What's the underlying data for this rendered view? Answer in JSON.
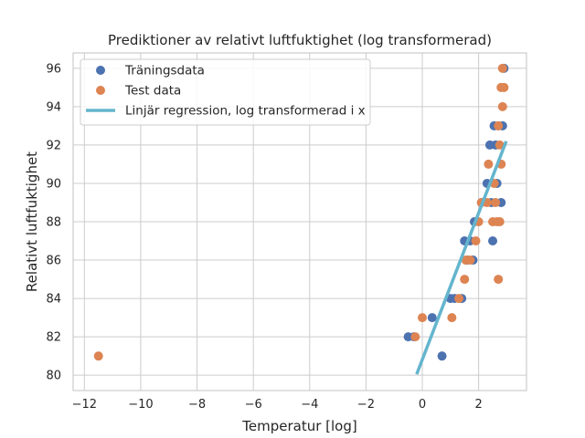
{
  "chart_data": {
    "type": "scatter",
    "title": "Prediktioner av relativt luftfuktighet (log transformerad)",
    "xlabel": "Temperatur [log]",
    "ylabel": "Relativt luftfuktighet",
    "xlim": [
      -12.4,
      3.7
    ],
    "ylim": [
      79.2,
      96.8
    ],
    "xticks": [
      -12,
      -10,
      -8,
      -6,
      -4,
      -2,
      0,
      2
    ],
    "yticks": [
      80,
      82,
      84,
      86,
      88,
      90,
      92,
      94,
      96
    ],
    "grid": true,
    "legend_position": "top-left",
    "series": [
      {
        "name": "Träningsdata",
        "kind": "scatter",
        "color": "#4c72b0",
        "points": [
          [
            -0.5,
            82
          ],
          [
            -0.3,
            82
          ],
          [
            0.35,
            83
          ],
          [
            0.7,
            81
          ],
          [
            1.0,
            84
          ],
          [
            1.15,
            84
          ],
          [
            1.4,
            84
          ],
          [
            1.5,
            87
          ],
          [
            1.6,
            86
          ],
          [
            1.7,
            87
          ],
          [
            1.8,
            86
          ],
          [
            1.85,
            88
          ],
          [
            2.1,
            89
          ],
          [
            2.3,
            90
          ],
          [
            2.4,
            92
          ],
          [
            2.45,
            89
          ],
          [
            2.5,
            87
          ],
          [
            2.55,
            93
          ],
          [
            2.6,
            92
          ],
          [
            2.65,
            90
          ],
          [
            2.7,
            93
          ],
          [
            2.8,
            89
          ],
          [
            2.85,
            93
          ],
          [
            2.9,
            96
          ]
        ]
      },
      {
        "name": "Test data",
        "kind": "scatter",
        "color": "#dd8452",
        "points": [
          [
            -11.5,
            81
          ],
          [
            -0.25,
            82
          ],
          [
            0.0,
            83
          ],
          [
            1.05,
            83
          ],
          [
            1.3,
            84
          ],
          [
            1.5,
            85
          ],
          [
            1.55,
            86
          ],
          [
            1.7,
            86
          ],
          [
            1.9,
            87
          ],
          [
            2.0,
            88
          ],
          [
            2.1,
            89
          ],
          [
            2.3,
            89
          ],
          [
            2.35,
            91
          ],
          [
            2.5,
            88
          ],
          [
            2.55,
            90
          ],
          [
            2.6,
            89
          ],
          [
            2.65,
            88
          ],
          [
            2.7,
            93
          ],
          [
            2.7,
            85
          ],
          [
            2.75,
            92
          ],
          [
            2.75,
            88
          ],
          [
            2.8,
            91
          ],
          [
            2.8,
            95
          ],
          [
            2.85,
            94
          ],
          [
            2.85,
            96
          ],
          [
            2.9,
            95
          ]
        ]
      },
      {
        "name": "Linjär regression, log transformerad i x",
        "kind": "line",
        "color": "#64b5cd",
        "points": [
          [
            -0.2,
            80.05
          ],
          [
            2.98,
            92.2
          ]
        ]
      }
    ]
  }
}
